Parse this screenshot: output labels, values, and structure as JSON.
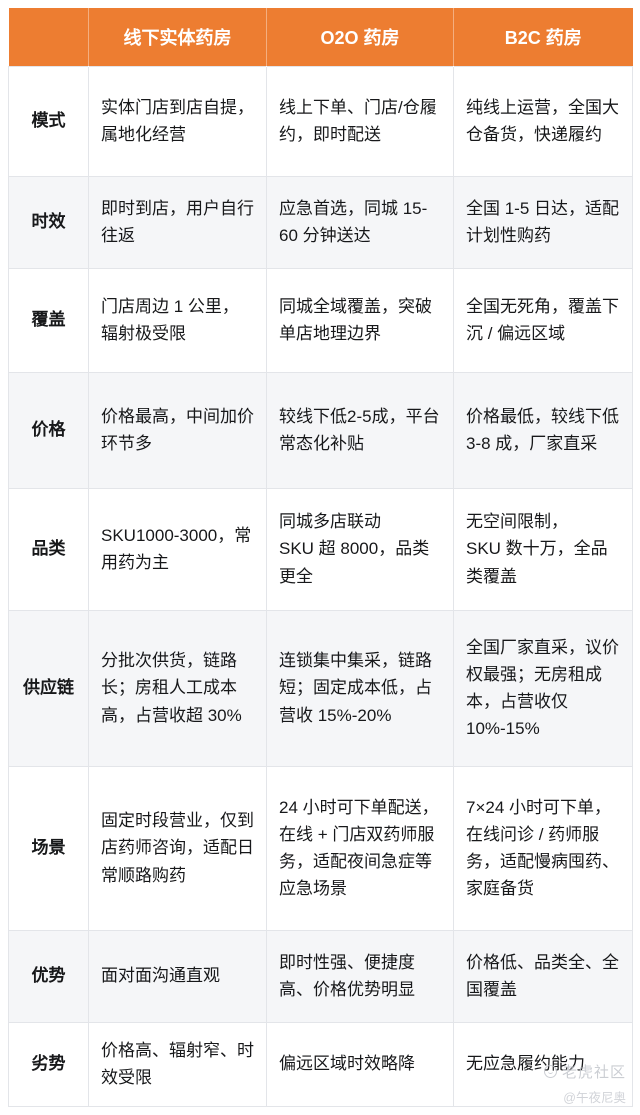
{
  "theme": {
    "accent_color": "#ED7D31",
    "stripe_color": "#F5F6F8",
    "border_color": "#E3E5E9",
    "header_text_color": "#FFFFFF",
    "body_text_color": "#17181A",
    "watermark_color": "#C3C6CC"
  },
  "table": {
    "columns": {
      "label": "",
      "col1": "线下实体药房",
      "col2": "O2O 药房",
      "col3": "B2C 药房"
    },
    "rows": [
      {
        "label": "模式",
        "cells": [
          "实体门店到店自提，属地化经营",
          "线上下单、门店/仓履约，即时配送",
          "纯线上运营，全国大仓备货，快递履约"
        ]
      },
      {
        "label": "时效",
        "cells": [
          "即时到店，用户自行往返",
          "应急首选，同城 15-60 分钟送达",
          "全国 1-5 日达，适配计划性购药"
        ]
      },
      {
        "label": "覆盖",
        "cells": [
          "门店周边 1 公里，辐射极受限",
          "同城全域覆盖，突破单店地理边界",
          "全国无死角，覆盖下沉 / 偏远区域"
        ]
      },
      {
        "label": "价格",
        "cells": [
          "价格最高，中间加价环节多",
          "较线下低2-5成，平台常态化补贴",
          "价格最低，较线下低 3-8 成，厂家直采"
        ]
      },
      {
        "label": "品类",
        "cells": [
          "SKU1000-3000，常用药为主",
          "同城多店联动\nSKU 超 8000，品类更全",
          "无空间限制，\nSKU 数十万，全品类覆盖"
        ]
      },
      {
        "label": "供应链",
        "cells": [
          "分批次供货，链路长；房租人工成本高，占营收超 30%",
          "连锁集中集采，链路短；固定成本低，占营收 15%-20%",
          "全国厂家直采，议价权最强；无房租成本，占营收仅 10%-15%"
        ]
      },
      {
        "label": "场景",
        "cells": [
          "固定时段营业，仅到店药师咨询，适配日常顺路购药",
          "24 小时可下单配送，在线 + 门店双药师服务，适配夜间急症等应急场景",
          "7×24 小时可下单，在线问诊 / 药师服务，适配慢病囤药、家庭备货"
        ]
      },
      {
        "label": "优势",
        "cells": [
          "面对面沟通直观",
          "即时性强、便捷度高、价格优势明显",
          "价格低、品类全、全国覆盖"
        ]
      },
      {
        "label": "劣势",
        "cells": [
          "价格高、辐射窄、时效受限",
          "偏远区域时效略降",
          "无应急履约能力"
        ]
      }
    ]
  },
  "watermark": {
    "community": "老虎社区",
    "handle": "@午夜尼奥"
  }
}
